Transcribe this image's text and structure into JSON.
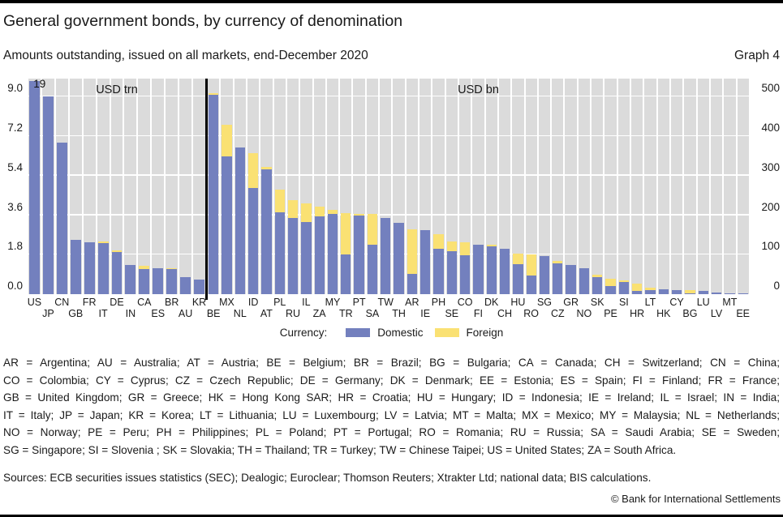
{
  "header": {
    "title": "General government bonds, by currency of denomination",
    "subtitle": "Amounts outstanding, issued on all markets, end-December 2020",
    "graph_label": "Graph 4"
  },
  "chart_data": {
    "type": "bar",
    "stacked": true,
    "grid": true,
    "panels": [
      {
        "name": "left",
        "unit_label": "USD trn",
        "axis_side": "left",
        "axis_max": 9.83,
        "tick_values": [
          0,
          1.8,
          3.6,
          5.4,
          7.2,
          9.0
        ],
        "tick_labels": [
          "0.0",
          "1.8",
          "3.6",
          "5.4",
          "7.2",
          "9.0"
        ],
        "first_label_row": 0,
        "bars": [
          {
            "code": "US",
            "domestic": 19.0,
            "foreign": 0,
            "display_cap": 9.72,
            "cap_label": "19"
          },
          {
            "code": "JP",
            "domestic": 9.0,
            "foreign": 0
          },
          {
            "code": "CN",
            "domestic": 6.9,
            "foreign": 0
          },
          {
            "code": "GB",
            "domestic": 2.48,
            "foreign": 0
          },
          {
            "code": "FR",
            "domestic": 2.37,
            "foreign": 0
          },
          {
            "code": "IT",
            "domestic": 2.33,
            "foreign": 0.06
          },
          {
            "code": "DE",
            "domestic": 1.92,
            "foreign": 0.09
          },
          {
            "code": "IN",
            "domestic": 1.34,
            "foreign": 0
          },
          {
            "code": "CA",
            "domestic": 1.13,
            "foreign": 0.17
          },
          {
            "code": "ES",
            "domestic": 1.19,
            "foreign": 0.01
          },
          {
            "code": "BR",
            "domestic": 1.13,
            "foreign": 0.05
          },
          {
            "code": "AU",
            "domestic": 0.78,
            "foreign": 0.01
          },
          {
            "code": "KR",
            "domestic": 0.68,
            "foreign": 0
          }
        ]
      },
      {
        "name": "right",
        "unit_label": "USD bn",
        "axis_side": "right",
        "axis_max": 546,
        "tick_values": [
          0,
          100,
          200,
          300,
          400,
          500
        ],
        "tick_labels": [
          "0",
          "100",
          "200",
          "300",
          "400",
          "500"
        ],
        "first_label_row": 1,
        "bars": [
          {
            "code": "BE",
            "domestic": 504,
            "foreign": 6
          },
          {
            "code": "MX",
            "domestic": 348,
            "foreign": 82
          },
          {
            "code": "NL",
            "domestic": 372,
            "foreign": 0
          },
          {
            "code": "ID",
            "domestic": 269,
            "foreign": 89
          },
          {
            "code": "AT",
            "domestic": 316,
            "foreign": 6
          },
          {
            "code": "PL",
            "domestic": 208,
            "foreign": 56
          },
          {
            "code": "RU",
            "domestic": 194,
            "foreign": 44
          },
          {
            "code": "IL",
            "domestic": 183,
            "foreign": 47
          },
          {
            "code": "ZA",
            "domestic": 197,
            "foreign": 25
          },
          {
            "code": "MY",
            "domestic": 204,
            "foreign": 9
          },
          {
            "code": "TR",
            "domestic": 101,
            "foreign": 105
          },
          {
            "code": "PT",
            "domestic": 199,
            "foreign": 4
          },
          {
            "code": "SA",
            "domestic": 126,
            "foreign": 78
          },
          {
            "code": "TW",
            "domestic": 194,
            "foreign": 0
          },
          {
            "code": "TH",
            "domestic": 181,
            "foreign": 0
          },
          {
            "code": "AR",
            "domestic": 51,
            "foreign": 114
          },
          {
            "code": "IE",
            "domestic": 163,
            "foreign": 0
          },
          {
            "code": "PH",
            "domestic": 114,
            "foreign": 38
          },
          {
            "code": "SE",
            "domestic": 108,
            "foreign": 26
          },
          {
            "code": "CO",
            "domestic": 99,
            "foreign": 33
          },
          {
            "code": "FI",
            "domestic": 125,
            "foreign": 0
          },
          {
            "code": "DK",
            "domestic": 121,
            "foreign": 4
          },
          {
            "code": "CH",
            "domestic": 115,
            "foreign": 0
          },
          {
            "code": "HU",
            "domestic": 76,
            "foreign": 27
          },
          {
            "code": "RO",
            "domestic": 47,
            "foreign": 53
          },
          {
            "code": "SG",
            "domestic": 97,
            "foreign": 0
          },
          {
            "code": "CZ",
            "domestic": 78,
            "foreign": 7
          },
          {
            "code": "GR",
            "domestic": 74,
            "foreign": 0
          },
          {
            "code": "NO",
            "domestic": 66,
            "foreign": 0
          },
          {
            "code": "SK",
            "domestic": 44,
            "foreign": 5
          },
          {
            "code": "PE",
            "domestic": 20,
            "foreign": 20
          },
          {
            "code": "SI",
            "domestic": 30,
            "foreign": 4
          },
          {
            "code": "HR",
            "domestic": 9,
            "foreign": 18
          },
          {
            "code": "LT",
            "domestic": 11,
            "foreign": 5
          },
          {
            "code": "HK",
            "domestic": 12,
            "foreign": 1
          },
          {
            "code": "CY",
            "domestic": 10,
            "foreign": 1
          },
          {
            "code": "BG",
            "domestic": 2,
            "foreign": 8
          },
          {
            "code": "LU",
            "domestic": 8,
            "foreign": 0
          },
          {
            "code": "LV",
            "domestic": 5,
            "foreign": 1
          },
          {
            "code": "MT",
            "domestic": 3,
            "foreign": 0
          },
          {
            "code": "EE",
            "domestic": 1.5,
            "foreign": 0
          }
        ]
      }
    ],
    "legend": {
      "title": "Currency:",
      "items": [
        {
          "label": "Domestic",
          "color": "#7380BE"
        },
        {
          "label": "Foreign",
          "color": "#FAE173"
        }
      ],
      "position": "bottom-center"
    }
  },
  "colors": {
    "bar_domestic": "#7380BE",
    "bar_foreign": "#FAE173",
    "plot_bg": "#DBDBDB",
    "grid": "#FFFFFF",
    "divider": "#000000",
    "frame": "#000000"
  },
  "footnotes": {
    "lines": [
      "AR = Argentina; AU = Australia; AT = Austria; BE = Belgium; BR = Brazil; BG = Bulgaria; CA = Canada; CH = Switzerland; CN = China;",
      "CO = Colombia; CY = Cyprus; CZ = Czech Republic; DE = Germany; DK = Denmark; EE = Estonia; ES = Spain; FI = Finland; FR = France;",
      "GB = United Kingdom; GR = Greece; HK = Hong Kong SAR; HR = Croatia; HU = Hungary; ID = Indonesia; IE = Ireland; IL = Israel; IN = India;",
      "IT = Italy; JP = Japan; KR = Korea; LT = Lithuania; LU = Luxembourg; LV = Latvia; MT = Malta; MX = Mexico; MY = Malaysia; NL = Netherlands;",
      "NO = Norway; PE = Peru; PH = Philippines; PL = Poland; PT = Portugal; RO = Romania; RU = Russia; SA = Saudi Arabia; SE = Sweden;",
      "SG = Singapore; SI = Slovenia ; SK = Slovakia; TH = Thailand; TR = Turkey; TW = Chinese Taipei; US = United States; ZA = South Africa."
    ]
  },
  "sources_line": "Sources: ECB securities issues statistics (SEC); Dealogic; Euroclear; Thomson Reuters; Xtrakter Ltd; national data; BIS calculations.",
  "copyright": "© Bank for International Settlements"
}
